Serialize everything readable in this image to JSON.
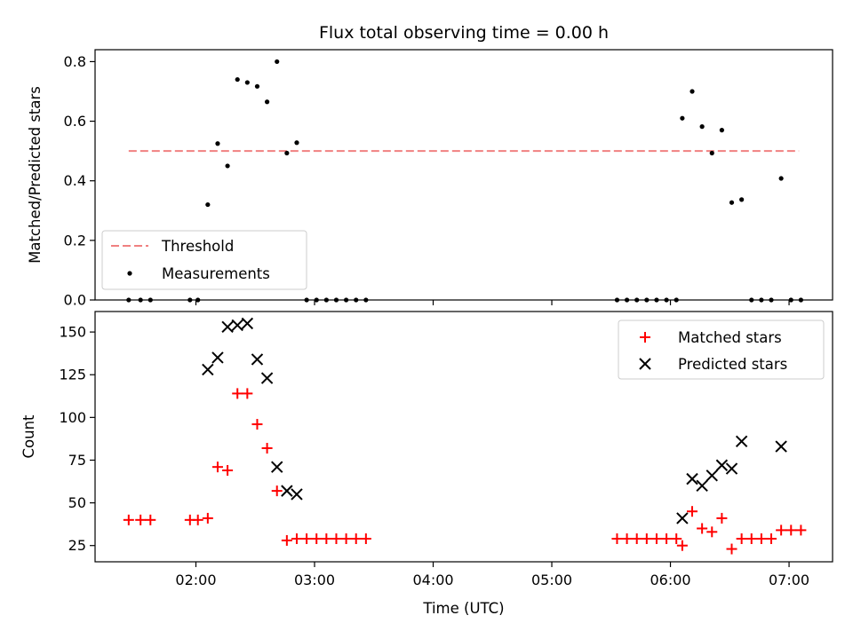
{
  "chart_data": [
    {
      "type": "scatter",
      "title": "Flux total observing time = 0.00 h",
      "ylabel": "Matched/Predicted stars",
      "xlabel": "",
      "ylim": [
        0,
        0.84
      ],
      "yticks": [
        0.0,
        0.2,
        0.4,
        0.6,
        0.8
      ],
      "ytick_labels": [
        "0.0",
        "0.2",
        "0.4",
        "0.6",
        "0.8"
      ],
      "legend": {
        "position": "lower-left",
        "entries": [
          "Threshold",
          "Measurements"
        ]
      },
      "threshold": {
        "name": "Threshold",
        "value": 0.5,
        "x_start": "01:26",
        "x_end": "07:05",
        "color": "#f08080"
      },
      "series": [
        {
          "name": "Measurements",
          "color": "#000000",
          "points": [
            [
              "01:26",
              0.0
            ],
            [
              "01:32",
              0.0
            ],
            [
              "01:37",
              0.0
            ],
            [
              "01:57",
              0.0
            ],
            [
              "02:01",
              0.0
            ],
            [
              "02:06",
              0.32
            ],
            [
              "02:11",
              0.525
            ],
            [
              "02:16",
              0.45
            ],
            [
              "02:21",
              0.74
            ],
            [
              "02:26",
              0.73
            ],
            [
              "02:31",
              0.717
            ],
            [
              "02:36",
              0.665
            ],
            [
              "02:41",
              0.8
            ],
            [
              "02:46",
              0.493
            ],
            [
              "02:51",
              0.528
            ],
            [
              "02:56",
              0.0
            ],
            [
              "03:01",
              0.0
            ],
            [
              "03:06",
              0.0
            ],
            [
              "03:11",
              0.0
            ],
            [
              "03:16",
              0.0
            ],
            [
              "03:21",
              0.0
            ],
            [
              "03:26",
              0.0
            ],
            [
              "05:33",
              0.0
            ],
            [
              "05:38",
              0.0
            ],
            [
              "05:43",
              0.0
            ],
            [
              "05:48",
              0.0
            ],
            [
              "05:53",
              0.0
            ],
            [
              "05:58",
              0.0
            ],
            [
              "06:03",
              0.0
            ],
            [
              "06:06",
              0.61
            ],
            [
              "06:11",
              0.7
            ],
            [
              "06:16",
              0.582
            ],
            [
              "06:21",
              0.493
            ],
            [
              "06:26",
              0.57
            ],
            [
              "06:31",
              0.327
            ],
            [
              "06:36",
              0.337
            ],
            [
              "06:41",
              0.0
            ],
            [
              "06:46",
              0.0
            ],
            [
              "06:51",
              0.0
            ],
            [
              "06:56",
              0.408
            ],
            [
              "07:01",
              0.0
            ],
            [
              "07:06",
              0.0
            ]
          ]
        }
      ]
    },
    {
      "type": "scatter",
      "title": "",
      "xlabel": "Time (UTC)",
      "ylabel": "Count",
      "ylim": [
        15.5,
        162
      ],
      "yticks": [
        25,
        50,
        75,
        100,
        125,
        150
      ],
      "ytick_labels": [
        "25",
        "50",
        "75",
        "100",
        "125",
        "150"
      ],
      "xlim": [
        "01:09",
        "07:22"
      ],
      "xticks": [
        "02:00",
        "03:00",
        "04:00",
        "05:00",
        "06:00",
        "07:00"
      ],
      "legend": {
        "position": "top-right",
        "entries": [
          "Matched stars",
          "Predicted stars"
        ]
      },
      "series": [
        {
          "name": "Matched stars",
          "marker": "plus",
          "color": "#ff0000",
          "points": [
            [
              "01:26",
              40
            ],
            [
              "01:32",
              40
            ],
            [
              "01:37",
              40
            ],
            [
              "01:57",
              40
            ],
            [
              "02:01",
              40
            ],
            [
              "02:06",
              41
            ],
            [
              "02:11",
              71
            ],
            [
              "02:16",
              69
            ],
            [
              "02:21",
              114
            ],
            [
              "02:26",
              114
            ],
            [
              "02:31",
              96
            ],
            [
              "02:36",
              82
            ],
            [
              "02:41",
              57
            ],
            [
              "02:46",
              28
            ],
            [
              "02:51",
              29
            ],
            [
              "02:56",
              29
            ],
            [
              "03:01",
              29
            ],
            [
              "03:06",
              29
            ],
            [
              "03:11",
              29
            ],
            [
              "03:16",
              29
            ],
            [
              "03:21",
              29
            ],
            [
              "03:26",
              29
            ],
            [
              "05:33",
              29
            ],
            [
              "05:38",
              29
            ],
            [
              "05:43",
              29
            ],
            [
              "05:48",
              29
            ],
            [
              "05:53",
              29
            ],
            [
              "05:58",
              29
            ],
            [
              "06:03",
              29
            ],
            [
              "06:06",
              25
            ],
            [
              "06:11",
              45
            ],
            [
              "06:16",
              35
            ],
            [
              "06:21",
              33
            ],
            [
              "06:26",
              41
            ],
            [
              "06:31",
              23
            ],
            [
              "06:36",
              29
            ],
            [
              "06:41",
              29
            ],
            [
              "06:46",
              29
            ],
            [
              "06:51",
              29
            ],
            [
              "06:56",
              34
            ],
            [
              "07:01",
              34
            ],
            [
              "07:06",
              34
            ]
          ]
        },
        {
          "name": "Predicted stars",
          "marker": "x",
          "color": "#000000",
          "points": [
            [
              "02:06",
              128
            ],
            [
              "02:11",
              135
            ],
            [
              "02:16",
              153
            ],
            [
              "02:21",
              154
            ],
            [
              "02:26",
              155
            ],
            [
              "02:31",
              134
            ],
            [
              "02:36",
              123
            ],
            [
              "02:41",
              71
            ],
            [
              "02:46",
              57
            ],
            [
              "02:51",
              55
            ],
            [
              "06:06",
              41
            ],
            [
              "06:11",
              64
            ],
            [
              "06:16",
              60
            ],
            [
              "06:21",
              66
            ],
            [
              "06:26",
              72
            ],
            [
              "06:31",
              70
            ],
            [
              "06:36",
              86
            ],
            [
              "06:56",
              83
            ]
          ]
        }
      ]
    }
  ]
}
